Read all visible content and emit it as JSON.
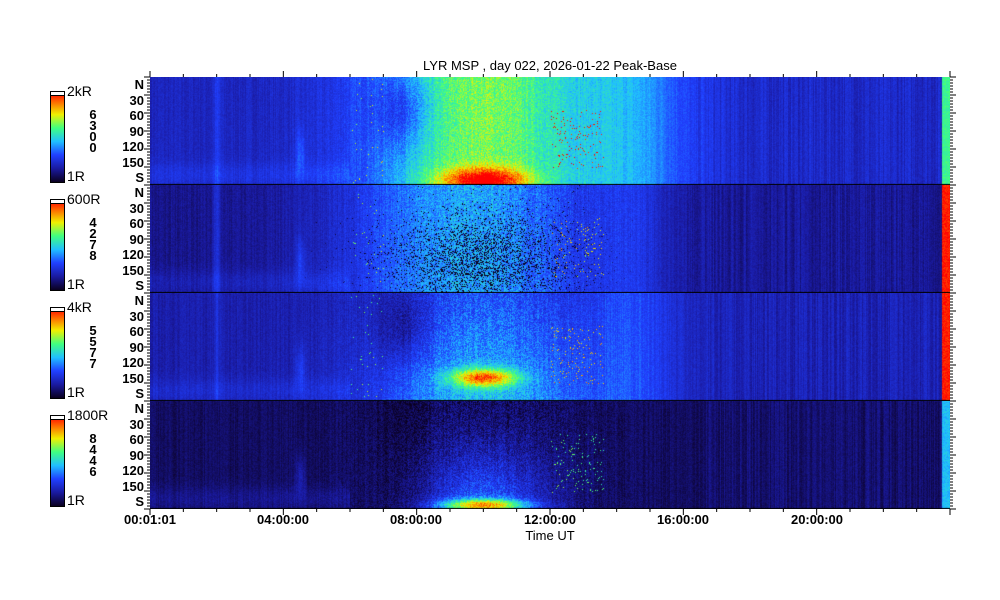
{
  "title": "LYR MSP , day 022, 2026-01-22 Peak-Base",
  "chart_data": {
    "type": "heatmap",
    "title": "LYR MSP , day 022, 2026-01-22 Peak-Base",
    "xlabel": "Time UT",
    "x_ticks": [
      "00:01:01",
      "04:00:00",
      "08:00:00",
      "12:00:00",
      "16:00:00",
      "20:00:00"
    ],
    "xlim": [
      "00:01:01",
      "24:00:00"
    ],
    "y_ticks": [
      "N",
      "30",
      "60",
      "90",
      "120",
      "150",
      "S"
    ],
    "ylim": [
      0,
      180
    ],
    "colormap": "rainbow",
    "panels": [
      {
        "wavelength": "6300",
        "scale_max": "2kR",
        "scale_min": "1R"
      },
      {
        "wavelength": "4278",
        "scale_max": "600R",
        "scale_min": "1R"
      },
      {
        "wavelength": "5577",
        "scale_max": "4kR",
        "scale_min": "1R"
      },
      {
        "wavelength": "8446",
        "scale_max": "1800R",
        "scale_min": "1R"
      }
    ]
  }
}
